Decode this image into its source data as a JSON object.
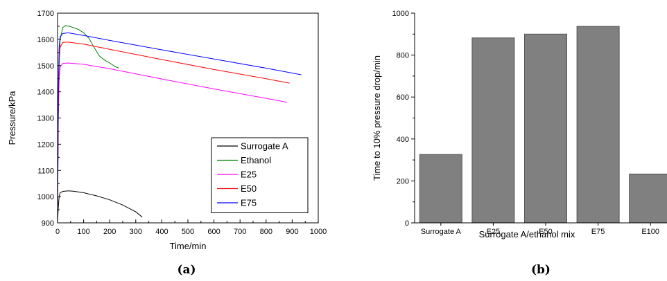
{
  "chart_data": [
    {
      "type": "line",
      "caption": "(a)",
      "xlabel": "Time/min",
      "ylabel": "Pressure/kPa",
      "xlim": [
        0,
        1000
      ],
      "ylim": [
        900,
        1700
      ],
      "xticks": [
        "0",
        "100",
        "200",
        "300",
        "400",
        "500",
        "600",
        "700",
        "800",
        "900",
        "1000"
      ],
      "yticks": [
        "900",
        "1000",
        "1100",
        "1200",
        "1300",
        "1400",
        "1500",
        "1600",
        "1700"
      ],
      "grid": false,
      "legend_position": "bottom-right",
      "series": [
        {
          "name": "Surrogate A",
          "color": "#000000",
          "x": [
            0,
            3,
            6,
            10,
            20,
            40,
            60,
            100,
            150,
            200,
            250,
            300,
            325
          ],
          "y": [
            900,
            960,
            1000,
            1015,
            1020,
            1022,
            1021,
            1015,
            1003,
            988,
            968,
            942,
            922
          ]
        },
        {
          "name": "Ethanol",
          "color": "#008000",
          "x": [
            0,
            3,
            6,
            10,
            20,
            30,
            45,
            60,
            80,
            100,
            120,
            140,
            160,
            180,
            200,
            220,
            235
          ],
          "y": [
            900,
            1300,
            1500,
            1600,
            1645,
            1652,
            1650,
            1645,
            1638,
            1625,
            1605,
            1570,
            1537,
            1521,
            1510,
            1497,
            1490
          ]
        },
        {
          "name": "E25",
          "color": "#ff00ff",
          "x": [
            0,
            3,
            6,
            10,
            20,
            40,
            100,
            200,
            400,
            600,
            800,
            880
          ],
          "y": [
            900,
            1300,
            1450,
            1495,
            1508,
            1510,
            1505,
            1488,
            1449,
            1411,
            1375,
            1360
          ]
        },
        {
          "name": "E50",
          "color": "#ff0000",
          "x": [
            0,
            3,
            6,
            10,
            20,
            40,
            100,
            200,
            400,
            600,
            800,
            890
          ],
          "y": [
            900,
            1350,
            1530,
            1570,
            1588,
            1590,
            1582,
            1562,
            1523,
            1485,
            1450,
            1433
          ]
        },
        {
          "name": "E75",
          "color": "#0000ff",
          "x": [
            0,
            3,
            6,
            10,
            20,
            40,
            100,
            200,
            400,
            600,
            800,
            935
          ],
          "y": [
            900,
            1400,
            1570,
            1610,
            1622,
            1625,
            1615,
            1596,
            1560,
            1525,
            1490,
            1465
          ]
        }
      ]
    },
    {
      "type": "bar",
      "caption": "(b)",
      "xlabel": "Surrogate A/ethanol mix",
      "ylabel": "Time to 10% pressure drop/min",
      "ylim": [
        0,
        1000
      ],
      "yticks": [
        "0",
        "200",
        "400",
        "600",
        "800",
        "1000"
      ],
      "categories": [
        "Surrogate A",
        "E25",
        "E50",
        "E75",
        "E100"
      ],
      "values": [
        326,
        882,
        900,
        937,
        233
      ],
      "bar_color": "#808080",
      "grid": false
    }
  ]
}
